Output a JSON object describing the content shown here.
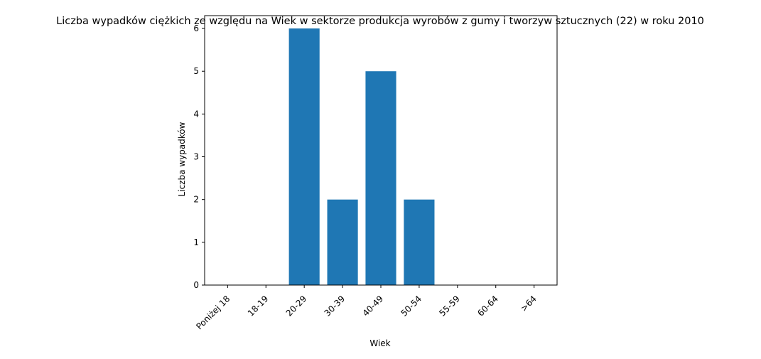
{
  "chart_data": {
    "type": "bar",
    "title": "Liczba wypadków ciężkich ze względu na Wiek w sektorze produkcja wyrobów z gumy i tworzyw sztucznych (22) w roku 2010",
    "xlabel": "Wiek",
    "ylabel": "Liczba wypadków",
    "categories": [
      "Poniżej 18",
      "18-19",
      "20-29",
      "30-39",
      "40-49",
      "50-54",
      "55-59",
      "60-64",
      ">64"
    ],
    "values": [
      0,
      0,
      6,
      2,
      5,
      2,
      0,
      0,
      0
    ],
    "ylim": [
      0,
      6.3
    ],
    "yticks": [
      0,
      1,
      2,
      3,
      4,
      5,
      6
    ],
    "grid": false,
    "colors": {
      "bar": "#1f77b4",
      "axis": "#000000"
    }
  }
}
